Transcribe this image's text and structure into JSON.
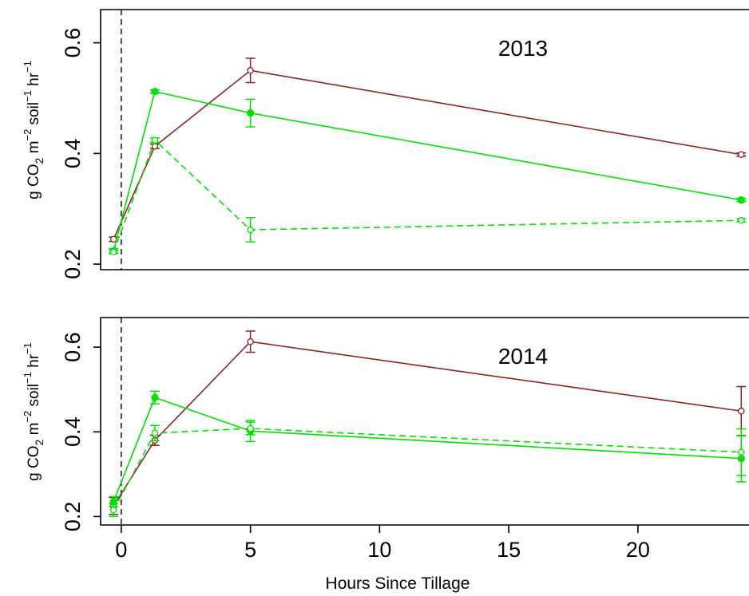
{
  "chart_data": {
    "type": "line",
    "colors": {
      "brown": "#8B2323",
      "green": "#00E000"
    },
    "xlabel": "Hours Since Tillage",
    "ylabel": {
      "pre": "g CO",
      "sub": "2",
      "m": " m",
      "m_exp": "−2",
      "soil": " soil",
      "soil_exp": "−1",
      "hr": " hr",
      "hr_exp": "−1"
    },
    "x_ticks": [
      0,
      5,
      10,
      15,
      20
    ],
    "x_tick_labels": [
      "0",
      "5",
      "10",
      "15",
      "20"
    ],
    "xlim": [
      -0.8,
      24.3
    ],
    "panels": [
      {
        "label": "2013",
        "ylim": [
          0.19,
          0.66
        ],
        "y_ticks": [
          0.2,
          0.4,
          0.6
        ],
        "y_tick_labels": [
          "0.2",
          "0.4",
          "0.6"
        ],
        "series": [
          {
            "color": "brown",
            "dash": false,
            "marker": "open",
            "x": [
              -0.3,
              1.3,
              5,
              24
            ],
            "y": [
              0.245,
              0.413,
              0.55,
              0.398
            ],
            "err": [
              0.004,
              0.004,
              0.022,
              0.003
            ]
          },
          {
            "color": "green",
            "dash": false,
            "marker": "filled",
            "x": [
              -0.3,
              1.3,
              5,
              24
            ],
            "y": [
              0.224,
              0.512,
              0.473,
              0.316
            ],
            "err": [
              0.004,
              0.003,
              0.025,
              0.003
            ]
          },
          {
            "color": "green",
            "dash": true,
            "marker": "open",
            "x": [
              -0.3,
              1.3,
              5,
              24
            ],
            "y": [
              0.222,
              0.424,
              0.262,
              0.279
            ],
            "err": [
              0.003,
              0.004,
              0.022,
              0.003
            ]
          }
        ]
      },
      {
        "label": "2014",
        "ylim": [
          0.18,
          0.67
        ],
        "y_ticks": [
          0.2,
          0.4,
          0.6
        ],
        "y_tick_labels": [
          "0.2",
          "0.4",
          "0.6"
        ],
        "series": [
          {
            "color": "brown",
            "dash": false,
            "marker": "open",
            "x": [
              -0.3,
              1.3,
              5,
              24
            ],
            "y": [
              0.225,
              0.38,
              0.613,
              0.449
            ],
            "err": [
              0.02,
              0.012,
              0.025,
              0.058
            ]
          },
          {
            "color": "green",
            "dash": false,
            "marker": "filled",
            "x": [
              -0.3,
              1.3,
              5,
              24
            ],
            "y": [
              0.235,
              0.481,
              0.402,
              0.337
            ],
            "err": [
              0.012,
              0.015,
              0.025,
              0.055
            ]
          },
          {
            "color": "green",
            "dash": true,
            "marker": "open",
            "x": [
              -0.3,
              1.3,
              5,
              24
            ],
            "y": [
              0.215,
              0.397,
              0.408,
              0.352
            ],
            "err": [
              0.015,
              0.018,
              0.015,
              0.055
            ]
          }
        ]
      }
    ]
  }
}
